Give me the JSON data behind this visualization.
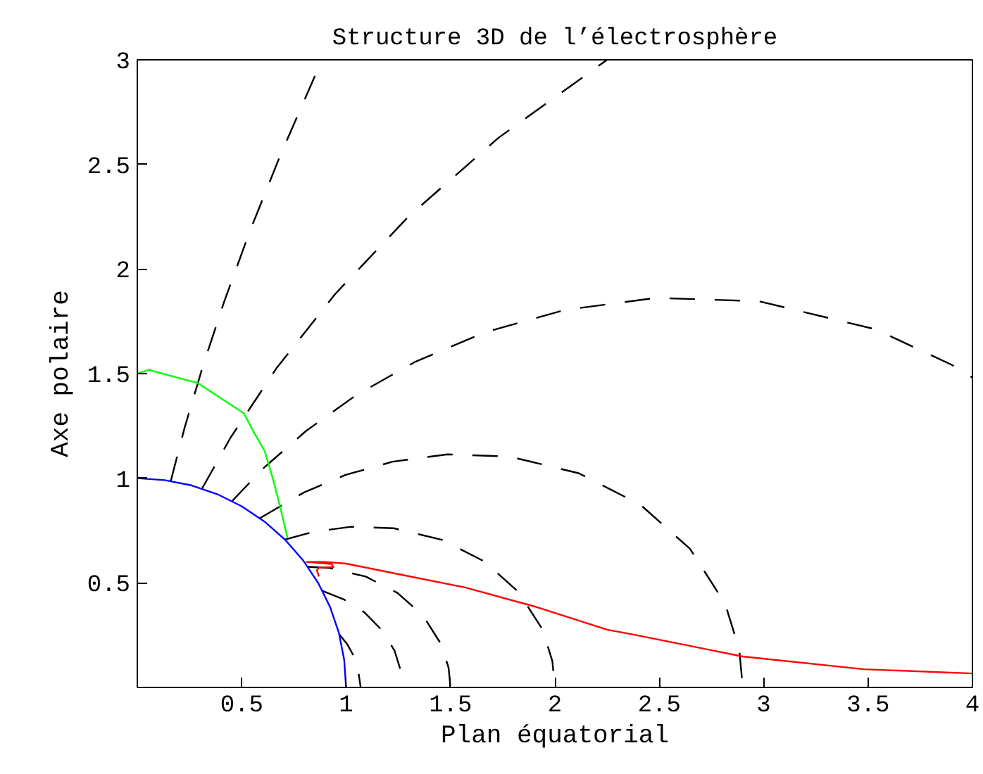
{
  "chart_data": {
    "type": "line",
    "title": "Structure 3D de l’électrosphère",
    "xlabel": "Plan équatorial",
    "ylabel": "Axe polaire",
    "xlim": [
      0,
      4
    ],
    "ylim": [
      0,
      3
    ],
    "xticks": [
      0.5,
      1,
      1.5,
      2,
      2.5,
      3,
      3.5,
      4
    ],
    "yticks": [
      0.5,
      1,
      1.5,
      2,
      2.5,
      3
    ],
    "grid": false,
    "marker": "none",
    "series": [
      {
        "color": "#000000",
        "line_style": "dashed",
        "x": [
          0.967,
          1.007,
          1.038,
          1.054,
          1.07
        ],
        "values": [
          0.255,
          0.204,
          0.148,
          0.106,
          0
        ]
      },
      {
        "color": "#000000",
        "line_style": "dashed",
        "x": [
          0.886,
          0.989,
          1.089,
          1.177,
          1.232,
          1.262,
          1.27
        ],
        "values": [
          0.462,
          0.421,
          0.358,
          0.268,
          0.176,
          0.08,
          0
        ]
      },
      {
        "color": "#000000",
        "line_style": "dashed",
        "x": [
          0.816,
          0.921,
          1.094,
          1.246,
          1.369,
          1.455,
          1.491,
          1.5
        ],
        "values": [
          0.577,
          0.571,
          0.53,
          0.452,
          0.343,
          0.207,
          0.094,
          0
        ]
      },
      {
        "color": "#000000",
        "line_style": "dashed",
        "x": [
          0.707,
          0.844,
          1.024,
          1.228,
          1.458,
          1.661,
          1.825,
          1.941,
          1.988,
          2
        ],
        "values": [
          0.707,
          0.744,
          0.768,
          0.761,
          0.706,
          0.603,
          0.457,
          0.277,
          0.126,
          0
        ]
      },
      {
        "color": "#000000",
        "line_style": "dashed",
        "x": [
          0.587,
          0.796,
          0.995,
          1.223,
          1.485,
          1.781,
          2.114,
          2.409,
          2.647,
          2.815,
          2.883,
          2.9
        ],
        "values": [
          0.809,
          0.931,
          1.015,
          1.079,
          1.114,
          1.104,
          1.024,
          0.874,
          0.663,
          0.401,
          0.183,
          0
        ]
      },
      {
        "color": "#000000",
        "line_style": "dashed",
        "x": [
          0.454,
          0.606,
          0.807,
          1.048,
          1.332,
          1.664,
          2.046,
          2.483,
          2.978,
          3.536,
          3.901,
          4.0
        ],
        "values": [
          0.891,
          1.05,
          1.225,
          1.397,
          1.557,
          1.697,
          1.804,
          1.862,
          1.846,
          1.712,
          1.542,
          1.481
        ]
      },
      {
        "color": "#000000",
        "line_style": "dashed",
        "x": [
          0.31,
          0.446,
          0.666,
          0.948,
          1.3,
          1.731,
          2.25
        ],
        "values": [
          0.95,
          1.193,
          1.525,
          1.881,
          2.252,
          2.628,
          3.0
        ]
      },
      {
        "color": "#000000",
        "line_style": "dashed",
        "x": [
          0.16,
          0.227,
          0.312,
          0.415,
          0.539,
          0.686,
          0.856,
          0.879
        ],
        "values": [
          0.986,
          1.243,
          1.529,
          1.841,
          2.181,
          2.546,
          2.935,
          2.986
        ]
      },
      {
        "color": "#0000ff",
        "line_style": "solid",
        "x": [
          0,
          0.131,
          0.259,
          0.383,
          0.5,
          0.609,
          0.707,
          0.793,
          0.866,
          0.924,
          0.966,
          0.991,
          1
        ],
        "values": [
          1,
          0.991,
          0.966,
          0.924,
          0.866,
          0.793,
          0.707,
          0.609,
          0.5,
          0.383,
          0.259,
          0.131,
          0
        ]
      },
      {
        "color": "#00ff00",
        "line_style": "solid",
        "x": [
          0,
          0.054,
          0.29,
          0.51,
          0.56,
          0.61,
          0.65,
          0.68,
          0.72
        ],
        "values": [
          1.5,
          1.518,
          1.455,
          1.311,
          1.217,
          1.13,
          0.995,
          0.88,
          0.713
        ]
      },
      {
        "color": "#ff0000",
        "line_style": "solid",
        "x": [
          0.87,
          0.86,
          0.87,
          0.94,
          0.93,
          0.81,
          0.9,
          1.0,
          1.234,
          1.57,
          1.91,
          2.25,
          2.36,
          2.6,
          2.9,
          3.48,
          4.0
        ],
        "values": [
          0.53,
          0.56,
          0.573,
          0.575,
          0.59,
          0.6,
          0.6,
          0.592,
          0.545,
          0.478,
          0.385,
          0.276,
          0.256,
          0.208,
          0.148,
          0.087,
          0.067
        ]
      }
    ]
  }
}
